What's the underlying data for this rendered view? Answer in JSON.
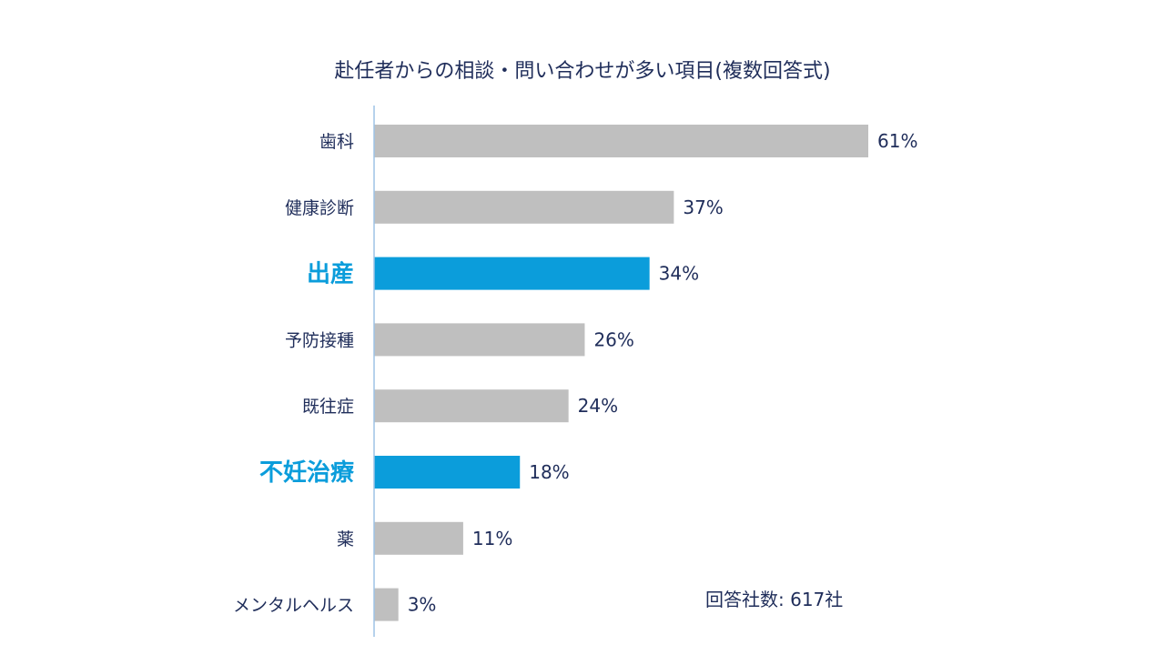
{
  "chart_data": {
    "type": "bar",
    "orientation": "horizontal",
    "title": "赴任者からの相談・問い合わせが多い項目(複数回答式)",
    "categories": [
      "歯科",
      "健康診断",
      "出産",
      "予防接種",
      "既往症",
      "不妊治療",
      "薬",
      "メンタルヘルス"
    ],
    "values": [
      61,
      37,
      34,
      26,
      24,
      18,
      11,
      3
    ],
    "value_labels": [
      "61%",
      "37%",
      "34%",
      "26%",
      "24%",
      "18%",
      "11%",
      "3%"
    ],
    "highlighted": [
      false,
      false,
      true,
      false,
      false,
      true,
      false,
      false
    ],
    "unit": "%",
    "xlim": [
      0,
      61
    ],
    "grid": false,
    "legend": "none",
    "note": "回答社数: 617社",
    "colors": {
      "bar": "#bfbfbf",
      "highlight": "#0b9ddb",
      "text": "#1f2d5a",
      "axis": "#9dc3e6"
    }
  }
}
